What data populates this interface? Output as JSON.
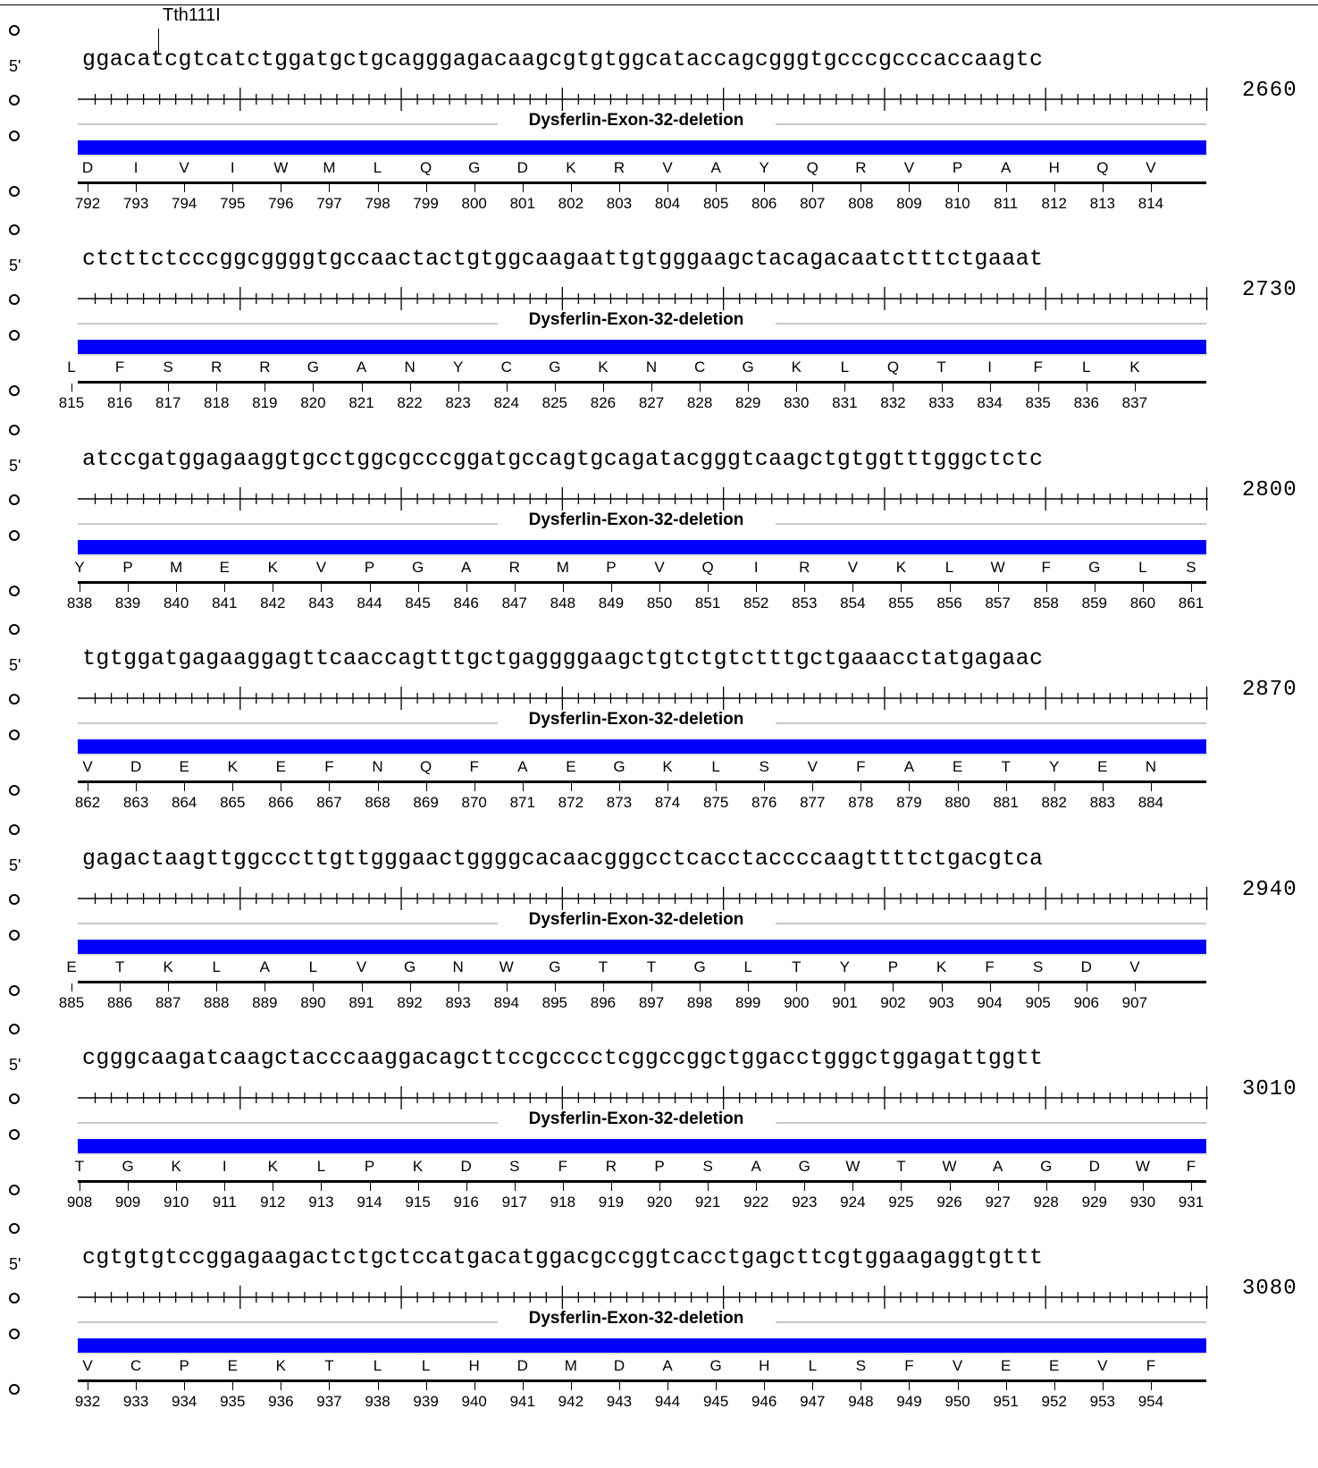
{
  "enzyme_site": "Tth111I",
  "strand_label": "5'",
  "feature_name": "Dysferlin-Exon-32-deletion",
  "feature_color": "#0000ff",
  "rows": [
    {
      "sequence": "ggacatcgtcatctggatgctgcagggagacaagcgtgtggcataccagcgggtgcccgcccaccaagtc",
      "end_position": "2660",
      "amino_acids": [
        "D",
        "I",
        "V",
        "I",
        "W",
        "M",
        "L",
        "Q",
        "G",
        "D",
        "K",
        "R",
        "V",
        "A",
        "Y",
        "Q",
        "R",
        "V",
        "P",
        "A",
        "H",
        "Q",
        "V"
      ],
      "aa_numbers": [
        "792",
        "793",
        "794",
        "795",
        "796",
        "797",
        "798",
        "799",
        "800",
        "801",
        "802",
        "803",
        "804",
        "805",
        "806",
        "807",
        "808",
        "809",
        "810",
        "811",
        "812",
        "813",
        "814"
      ],
      "frame": 2
    },
    {
      "sequence": "ctcttctcccggcggggtgccaactactgtggcaagaattgtgggaagctacagacaatctttctgaaat",
      "end_position": "2730",
      "amino_acids": [
        "L",
        "F",
        "S",
        "R",
        "R",
        "G",
        "A",
        "N",
        "Y",
        "C",
        "G",
        "K",
        "N",
        "C",
        "G",
        "K",
        "L",
        "Q",
        "T",
        "I",
        "F",
        "L",
        "K"
      ],
      "aa_numbers": [
        "815",
        "816",
        "817",
        "818",
        "819",
        "820",
        "821",
        "822",
        "823",
        "824",
        "825",
        "826",
        "827",
        "828",
        "829",
        "830",
        "831",
        "832",
        "833",
        "834",
        "835",
        "836",
        "837"
      ],
      "frame": 1
    },
    {
      "sequence": "atccgatggagaaggtgcctggcgcccggatgccagtgcagatacgggtcaagctgtggtttgggctctc",
      "end_position": "2800",
      "amino_acids": [
        "Y",
        "P",
        "M",
        "E",
        "K",
        "V",
        "P",
        "G",
        "A",
        "R",
        "M",
        "P",
        "V",
        "Q",
        "I",
        "R",
        "V",
        "K",
        "L",
        "W",
        "F",
        "G",
        "L",
        "S"
      ],
      "aa_numbers": [
        "838",
        "839",
        "840",
        "841",
        "842",
        "843",
        "844",
        "845",
        "846",
        "847",
        "848",
        "849",
        "850",
        "851",
        "852",
        "853",
        "854",
        "855",
        "856",
        "857",
        "858",
        "859",
        "860",
        "861"
      ],
      "frame": 0
    },
    {
      "sequence": "tgtggatgagaaggagttcaaccagtttgctgaggggaagctgtctgtctttgctgaaacctatgagaac",
      "end_position": "2870",
      "amino_acids": [
        "V",
        "D",
        "E",
        "K",
        "E",
        "F",
        "N",
        "Q",
        "F",
        "A",
        "E",
        "G",
        "K",
        "L",
        "S",
        "V",
        "F",
        "A",
        "E",
        "T",
        "Y",
        "E",
        "N"
      ],
      "aa_numbers": [
        "862",
        "863",
        "864",
        "865",
        "866",
        "867",
        "868",
        "869",
        "870",
        "871",
        "872",
        "873",
        "874",
        "875",
        "876",
        "877",
        "878",
        "879",
        "880",
        "881",
        "882",
        "883",
        "884"
      ],
      "frame": 2
    },
    {
      "sequence": "gagactaagttggcccttgttgggaactggggcacaacgggcctcacctaccccaagttttctgacgtca",
      "end_position": "2940",
      "amino_acids": [
        "E",
        "T",
        "K",
        "L",
        "A",
        "L",
        "V",
        "G",
        "N",
        "W",
        "G",
        "T",
        "T",
        "G",
        "L",
        "T",
        "Y",
        "P",
        "K",
        "F",
        "S",
        "D",
        "V"
      ],
      "aa_numbers": [
        "885",
        "886",
        "887",
        "888",
        "889",
        "890",
        "891",
        "892",
        "893",
        "894",
        "895",
        "896",
        "897",
        "898",
        "899",
        "900",
        "901",
        "902",
        "903",
        "904",
        "905",
        "906",
        "907"
      ],
      "frame": 1
    },
    {
      "sequence": "cgggcaagatcaagctacccaaggacagcttccgcccctcggccggctggacctgggctggagattggtt",
      "end_position": "3010",
      "amino_acids": [
        "T",
        "G",
        "K",
        "I",
        "K",
        "L",
        "P",
        "K",
        "D",
        "S",
        "F",
        "R",
        "P",
        "S",
        "A",
        "G",
        "W",
        "T",
        "W",
        "A",
        "G",
        "D",
        "W",
        "F"
      ],
      "aa_numbers": [
        "908",
        "909",
        "910",
        "911",
        "912",
        "913",
        "914",
        "915",
        "916",
        "917",
        "918",
        "919",
        "920",
        "921",
        "922",
        "923",
        "924",
        "925",
        "926",
        "927",
        "928",
        "929",
        "930",
        "931"
      ],
      "frame": 0
    },
    {
      "sequence": "cgtgtgtccggagaagactctgctccatgacatggacgccggtcacctgagcttcgtggaagaggtgttt",
      "end_position": "3080",
      "amino_acids": [
        "V",
        "C",
        "P",
        "E",
        "K",
        "T",
        "L",
        "L",
        "H",
        "D",
        "M",
        "D",
        "A",
        "G",
        "H",
        "L",
        "S",
        "F",
        "V",
        "E",
        "E",
        "V",
        "F"
      ],
      "aa_numbers": [
        "932",
        "933",
        "934",
        "935",
        "936",
        "937",
        "938",
        "939",
        "940",
        "941",
        "942",
        "943",
        "944",
        "945",
        "946",
        "947",
        "948",
        "949",
        "950",
        "951",
        "952",
        "953",
        "954"
      ],
      "frame": 2
    }
  ]
}
